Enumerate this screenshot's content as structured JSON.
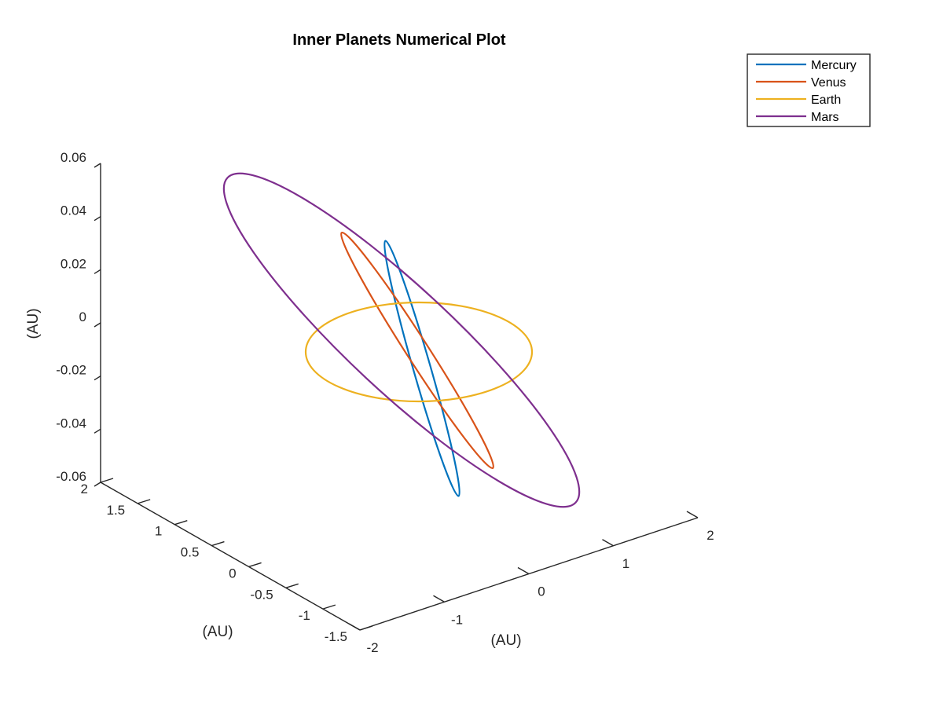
{
  "chart_data": {
    "type": "line",
    "projection": "3d",
    "title": "Inner Planets Numerical Plot",
    "xlabel": "(AU)",
    "ylabel": "(AU)",
    "zlabel": "(AU)",
    "x_range": [
      -2,
      2
    ],
    "y_range": [
      -1.5,
      2
    ],
    "z_range": [
      -0.06,
      0.06
    ],
    "x_ticks": [
      "-2",
      "-1",
      "0",
      "1",
      "2"
    ],
    "y_ticks": [
      "-1.5",
      "-1",
      "-0.5",
      "0",
      "0.5",
      "1",
      "1.5",
      "2"
    ],
    "z_ticks": [
      "-0.06",
      "-0.04",
      "-0.02",
      "0",
      "0.02",
      "0.04",
      "0.06"
    ],
    "grid": false,
    "legend_position": "top-right",
    "series": [
      {
        "name": "Mercury",
        "color": "#0072BD",
        "shape": "ellipse",
        "center": [
          -0.05,
          -0.1,
          0.0
        ],
        "radius_au": 0.39,
        "inclination_deg": 7.0
      },
      {
        "name": "Venus",
        "color": "#D95319",
        "shape": "ellipse",
        "center": [
          0.0,
          0.0,
          0.0
        ],
        "radius_au": 0.72,
        "inclination_deg": 3.4
      },
      {
        "name": "Earth",
        "color": "#EDB120",
        "shape": "ellipse",
        "center": [
          0.0,
          0.0,
          0.0
        ],
        "radius_au": 1.0,
        "inclination_deg": 0.0
      },
      {
        "name": "Mars",
        "color": "#7E2F8E",
        "shape": "ellipse",
        "center": [
          0.1,
          0.1,
          0.0
        ],
        "radius_au": 1.52,
        "inclination_deg": 1.85
      }
    ]
  }
}
